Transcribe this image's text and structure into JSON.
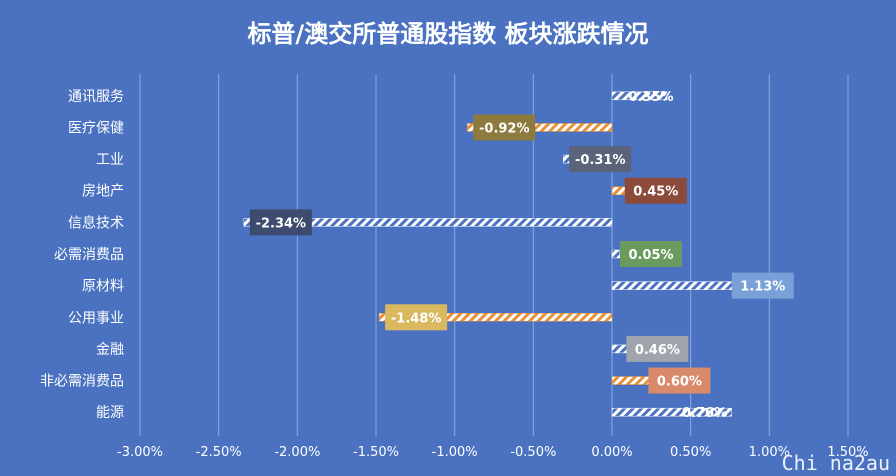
{
  "chart_data": {
    "type": "bar",
    "orientation": "horizontal",
    "title": "标普/澳交所普通股指数 板块涨跌情况",
    "categories": [
      "通讯服务",
      "医疗保健",
      "工业",
      "房地产",
      "信息技术",
      "必需消费品",
      "原材料",
      "公用事业",
      "金融",
      "非必需消费品",
      "能源"
    ],
    "values": [
      0.35,
      -0.92,
      -0.31,
      0.45,
      -2.34,
      0.05,
      1.13,
      -1.48,
      0.46,
      0.6,
      0.76
    ],
    "data_labels": [
      "0.35%",
      "-0.92%",
      "-0.31%",
      "0.45%",
      "-2.34%",
      "0.05%",
      "1.13%",
      "-1.48%",
      "0.46%",
      "0.60%",
      "0.76%"
    ],
    "bar_colors": [
      "#ffffff",
      "#e8913a",
      "#ffffff",
      "#e8913a",
      "#ffffff",
      "#ffffff",
      "#ffffff",
      "#e8913a",
      "#ffffff",
      "#e8913a",
      "#ffffff"
    ],
    "label_box_colors": [
      "",
      "#8c7a3e",
      "#5a6378",
      "#8b4a3a",
      "#3c4b6e",
      "#6a9a5e",
      "#7aa0d8",
      "#d9b860",
      "#a0a4ac",
      "#d88a6a",
      ""
    ],
    "xlim": [
      -3.0,
      1.5
    ],
    "xticks": [
      -3.0,
      -2.5,
      -2.0,
      -1.5,
      -1.0,
      -0.5,
      0.0,
      0.5,
      1.0,
      1.5
    ],
    "xtick_labels": [
      "-3.00%",
      "-2.50%",
      "-2.00%",
      "-1.50%",
      "-1.00%",
      "-0.50%",
      "0.00%",
      "0.50%",
      "1.00%",
      "1.50%"
    ],
    "grid": true,
    "legend": "none"
  },
  "watermark": "Chi na2au",
  "colors": {
    "background": "#4a72c0",
    "gridline": "#8fa9dc",
    "text": "#ffffff"
  }
}
